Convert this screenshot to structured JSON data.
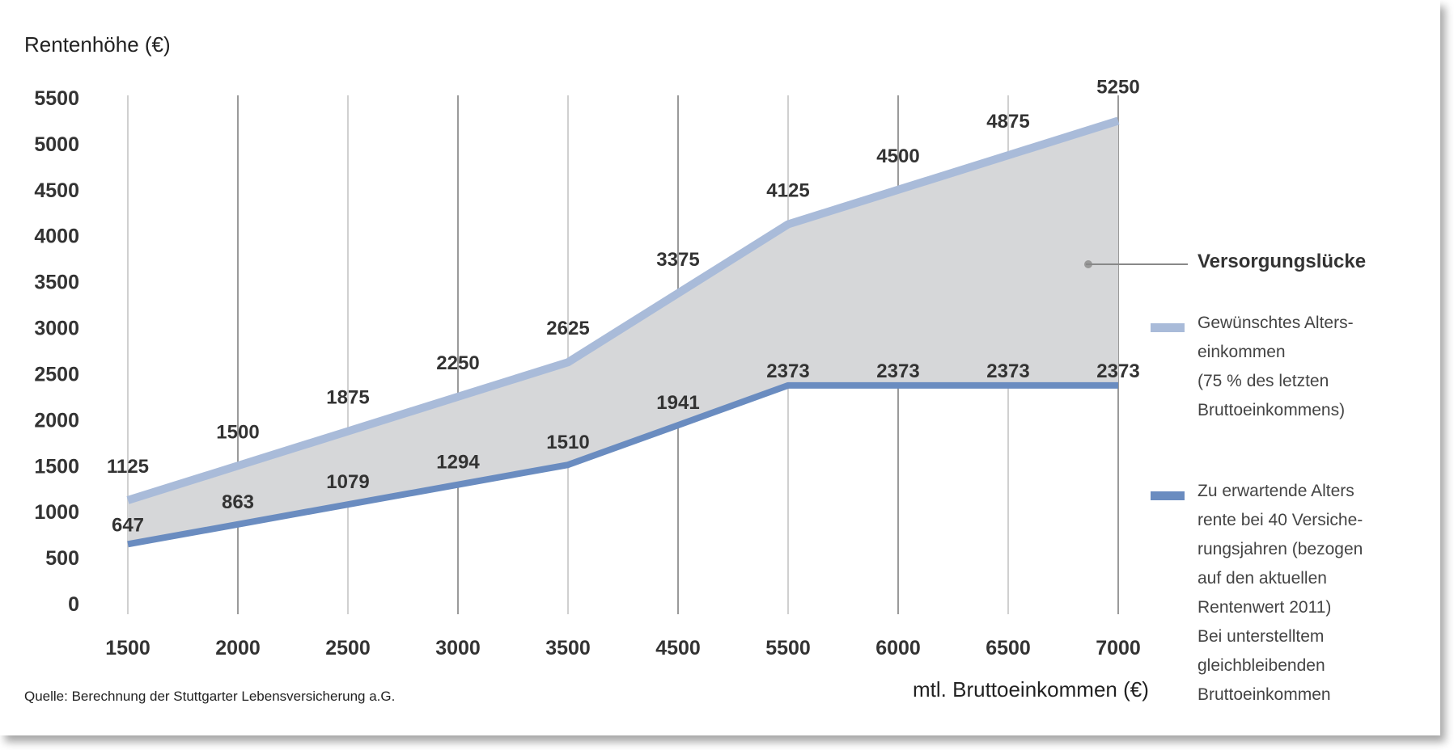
{
  "chart_data": {
    "type": "area",
    "ylabel": "Rentenhöhe (€)",
    "xlabel": "mtl. Bruttoeinkommen (€)",
    "source": "Quelle: Berechnung der Stuttgarter Lebensversicherung a.G.",
    "x": [
      1500,
      2000,
      2500,
      3000,
      3500,
      4500,
      5500,
      6000,
      6500,
      7000
    ],
    "x_tick_labels": [
      "1500",
      "2000",
      "2500",
      "3000",
      "3500",
      "4500",
      "5500",
      "6000",
      "6500",
      "7000"
    ],
    "y_ticks": [
      0,
      500,
      1000,
      1500,
      2000,
      2500,
      3000,
      3500,
      4000,
      4500,
      5000,
      5500
    ],
    "ylim": [
      0,
      5500
    ],
    "grid": "vertical",
    "series": [
      {
        "name": "Gewünschtes Alterseinkommen (75 % des letzten Bruttoeinkommens)",
        "values": [
          1125,
          1500,
          1875,
          2250,
          2625,
          3375,
          4125,
          4500,
          4875,
          5250
        ],
        "data_labels": [
          "1125",
          "1500",
          "1875",
          "2250",
          "2625",
          "3375",
          "4125",
          "4500",
          "4875",
          "5250"
        ],
        "color": "#a9bbd9"
      },
      {
        "name": "Zu erwartende Altersrente bei 40 Versicherungsjahren (bezogen auf den aktuellen Rentenwert 2011) Bei unterstelltem gleichbleibenden Bruttoeinkommen",
        "values": [
          647,
          863,
          1079,
          1294,
          1510,
          1941,
          2373,
          2373,
          2373,
          2373
        ],
        "data_labels": [
          "647",
          "863",
          "1079",
          "1294",
          "1510",
          "1941",
          "2373",
          "2373",
          "2373",
          "2373"
        ],
        "color": "#6a8cc0"
      }
    ],
    "gap_label": "Versorgungslücke",
    "gap_color": "#d6d7d9",
    "legend_placement": "right"
  },
  "legend": {
    "gap": "Versorgungslücke",
    "desired": "Gewünschtes Alters-\neinkommen\n(75 % des letzten\nBruttoeinkommens)",
    "expected": "Zu erwartende Alters\nrente bei 40 Versiche-\nrungsjahren (bezogen\nauf den aktuellen\nRentenwert 2011)\nBei unterstelltem\ngleichbleibenden\nBruttoeinkommen"
  }
}
